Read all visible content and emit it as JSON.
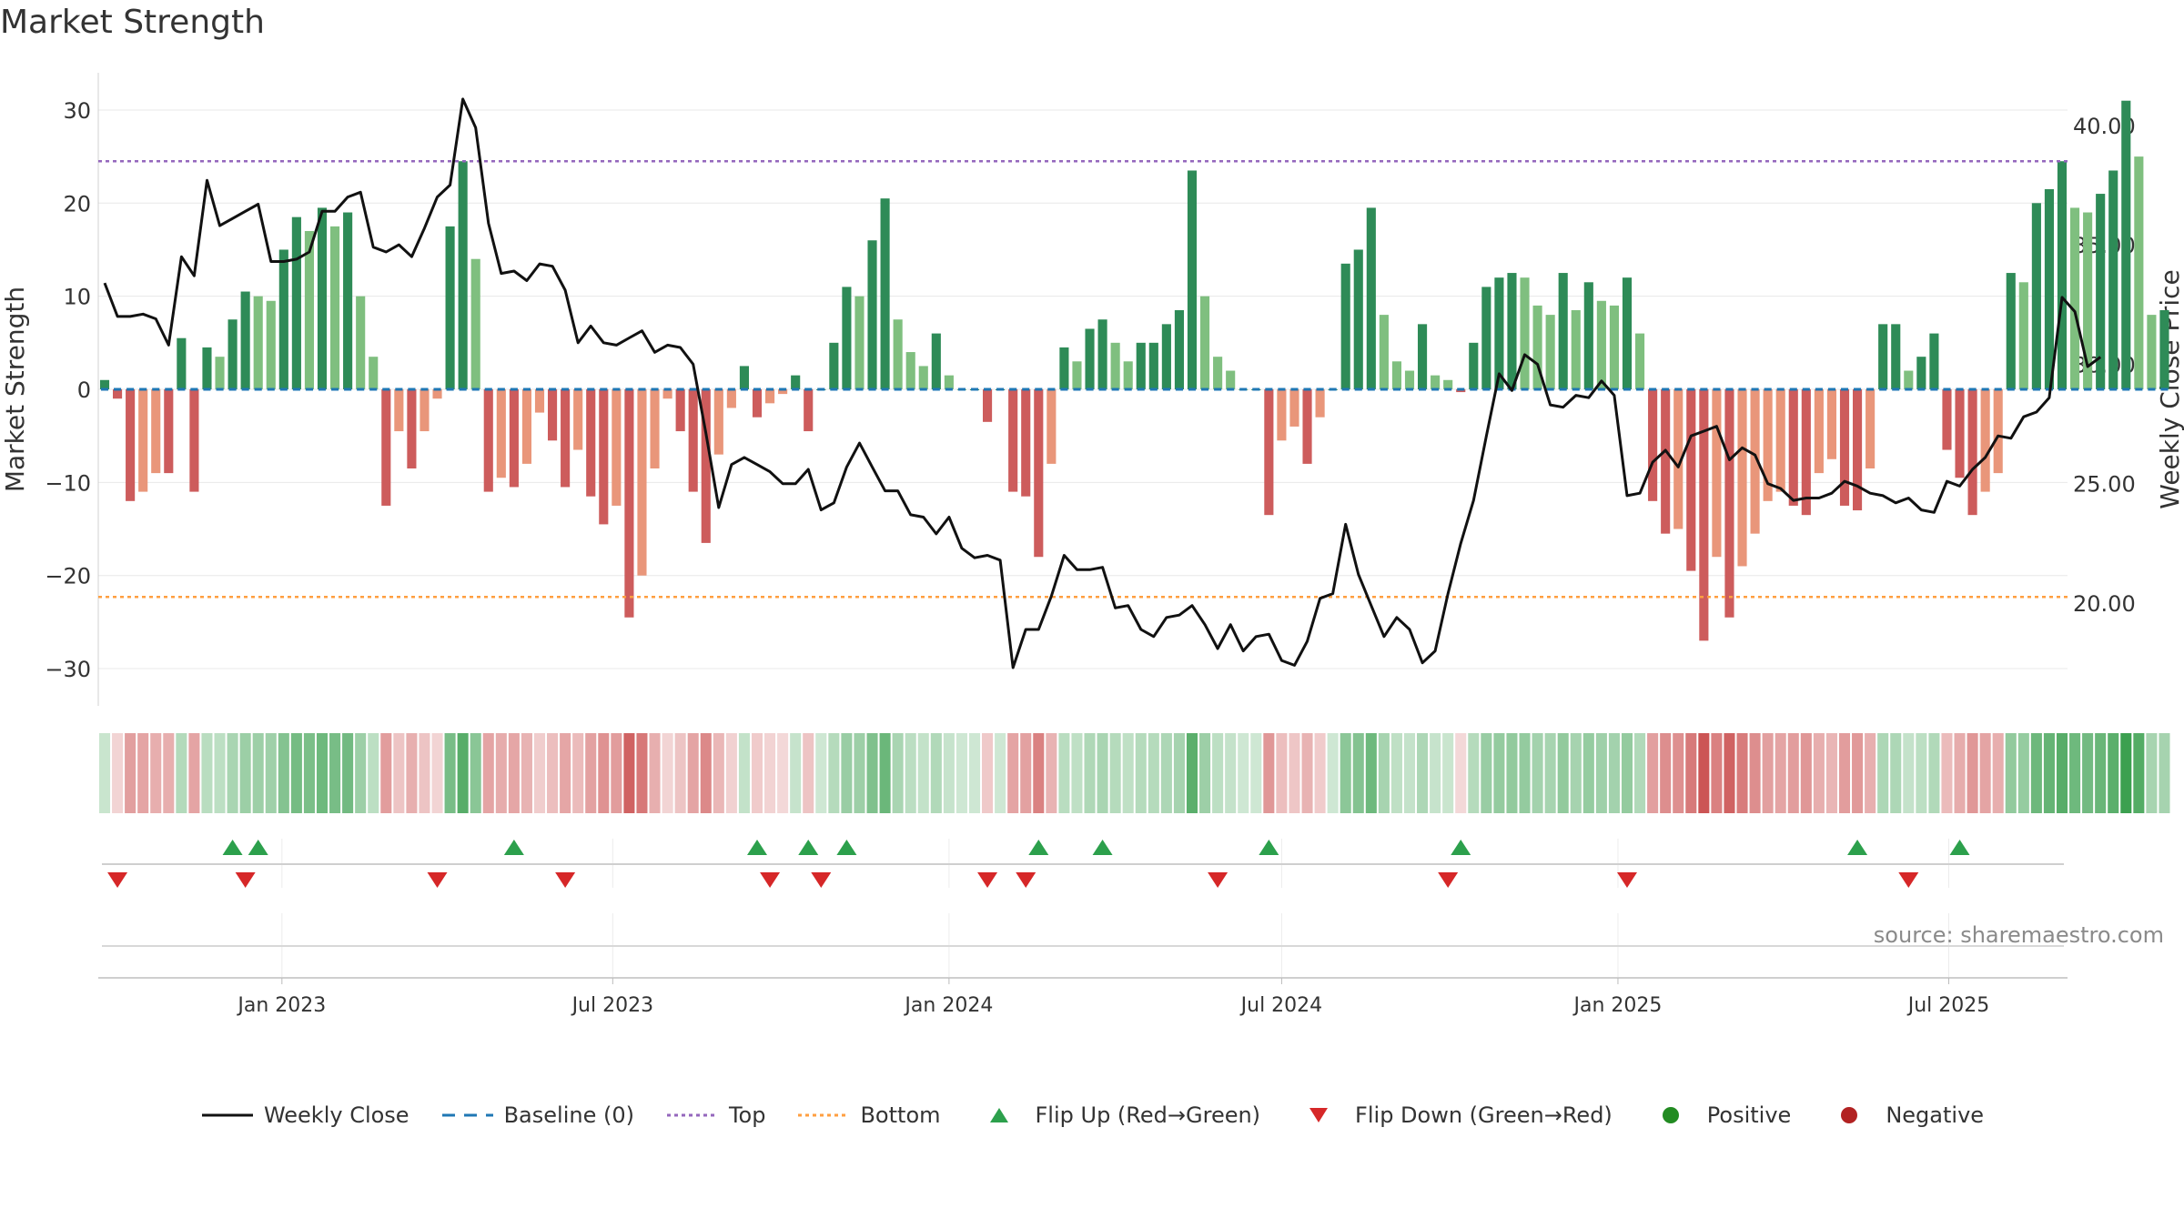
{
  "title": "Market Strength",
  "source_text": "source: sharemaestro.com",
  "colors": {
    "strong_green": "#2e8b57",
    "light_green": "#7fbf7f",
    "strong_red": "#cd5c5c",
    "light_red": "#e9967a",
    "close_line": "#111111",
    "baseline": "#1f77b4",
    "top_line": "#9467bd",
    "bottom_line": "#ff9f40",
    "flip_up": "#2ca04c",
    "flip_down": "#d62728",
    "positive": "#228b22",
    "negative": "#b22222"
  },
  "legend": [
    {
      "label": "Weekly Close",
      "icon": "line-solid",
      "color": "#111111"
    },
    {
      "label": "Baseline (0)",
      "icon": "line-dashed",
      "color": "#1f77b4"
    },
    {
      "label": "Top",
      "icon": "line-dotted",
      "color": "#9467bd"
    },
    {
      "label": "Bottom",
      "icon": "line-dotted",
      "color": "#ff9f40"
    },
    {
      "label": "Flip Up (Red→Green)",
      "icon": "triangle-up",
      "color": "#2ca04c"
    },
    {
      "label": "Flip Down (Green→Red)",
      "icon": "triangle-down",
      "color": "#d62728"
    },
    {
      "label": "Positive",
      "icon": "circle",
      "color": "#228b22"
    },
    {
      "label": "Negative",
      "icon": "circle",
      "color": "#b22222"
    }
  ],
  "chart_data": {
    "type": "bar",
    "title": "Market Strength",
    "ylabel": "Market Strength",
    "y2label": "Weekly Close Price",
    "ylim": [
      -34,
      34
    ],
    "yticks": [
      -30,
      -20,
      -10,
      0,
      10,
      20,
      30
    ],
    "ytick_labels": [
      "−30",
      "−20",
      "−10",
      "0",
      "10",
      "20",
      "30"
    ],
    "y2lim": [
      15.7,
      42.2
    ],
    "y2ticks": [
      20,
      25,
      30,
      35,
      40
    ],
    "y2tick_labels": [
      "20.00",
      "25.00",
      "30.00",
      "35.00",
      "40.00"
    ],
    "start_date": "2022-09-26",
    "week_count": 154,
    "xticks": [
      "2023-01-01",
      "2023-07-01",
      "2024-01-01",
      "2024-07-01",
      "2025-01-01",
      "2025-07-01"
    ],
    "xtick_labels": [
      "Jan 2023",
      "Jul 2023",
      "Jan 2024",
      "Jul 2024",
      "Jan 2025",
      "Jul 2025"
    ],
    "top_level": 24.5,
    "bottom_level": -22.3,
    "grid": true,
    "legend_position": "bottom",
    "strength": [
      1,
      -1,
      -12,
      -11,
      -9,
      -9,
      5.5,
      -11,
      4.5,
      3.5,
      7.5,
      10.5,
      10,
      9.5,
      15,
      18.5,
      17,
      19.5,
      17.5,
      19,
      10,
      3.5,
      -12.5,
      -4.5,
      -8.5,
      -4.5,
      -1,
      17.5,
      24.5,
      14,
      -11,
      -9.5,
      -10.5,
      -8,
      -2.5,
      -5.5,
      -10.5,
      -6.5,
      -11.5,
      -14.5,
      -12.5,
      -24.5,
      -20,
      -8.5,
      -1,
      -4.5,
      -11,
      -16.5,
      -7,
      -2,
      2.5,
      -3,
      -1.5,
      -0.5,
      1.5,
      -4.5,
      0,
      5,
      11,
      10,
      16,
      20.5,
      7.5,
      4,
      2.5,
      6,
      1.5,
      0,
      0,
      -3.5,
      0,
      -11,
      -11.5,
      -18,
      -8,
      4.5,
      3,
      6.5,
      7.5,
      5,
      3,
      5,
      5,
      7,
      8.5,
      23.5,
      10,
      3.5,
      2,
      0,
      0,
      -13.5,
      -5.5,
      -4,
      -8,
      -3,
      0,
      13.5,
      15,
      19.5,
      8,
      3,
      2,
      7,
      1.5,
      1,
      -0.3,
      5,
      11,
      12,
      12.5,
      12,
      9,
      8,
      12.5,
      8.5,
      11.5,
      9.5,
      9,
      12,
      6,
      -12,
      -15.5,
      -15,
      -19.5,
      -27,
      -18,
      -24.5,
      -19,
      -15.5,
      -12,
      -11,
      -12.5,
      -13.5,
      -9,
      -7.5,
      -12.5,
      -13,
      -8.5,
      7,
      7,
      2,
      3.5,
      6,
      -6.5,
      -9.5,
      -13.5,
      -11,
      -9,
      12.5,
      11.5,
      20,
      21.5,
      24.5,
      19.5,
      19,
      21,
      23.5,
      31,
      25,
      8,
      8.5
    ],
    "weekly_close": [
      33.4,
      32,
      32,
      32.1,
      31.9,
      30.8,
      34.5,
      33.7,
      37.7,
      35.8,
      36.1,
      36.4,
      36.7,
      34.3,
      34.3,
      34.4,
      34.7,
      36.4,
      36.4,
      37,
      37.2,
      34.9,
      34.7,
      35,
      34.5,
      35.7,
      37,
      37.5,
      41.1,
      39.9,
      35.9,
      33.8,
      33.9,
      33.5,
      34.2,
      34.1,
      33.1,
      30.9,
      31.6,
      30.9,
      30.8,
      31.1,
      31.4,
      30.5,
      30.8,
      30.7,
      30,
      27.1,
      24,
      25.8,
      26.1,
      25.8,
      25.5,
      25,
      25,
      25.6,
      23.9,
      24.2,
      25.7,
      26.7,
      25.7,
      24.7,
      24.7,
      23.7,
      23.6,
      22.9,
      23.6,
      22.3,
      21.9,
      22,
      21.8,
      17.3,
      18.9,
      18.9,
      20.3,
      22,
      21.4,
      21.4,
      21.5,
      19.8,
      19.9,
      18.9,
      18.6,
      19.4,
      19.5,
      19.9,
      19.1,
      18.1,
      19.1,
      18,
      18.6,
      18.7,
      17.6,
      17.4,
      18.4,
      20.2,
      20.4,
      23.3,
      21.2,
      19.9,
      18.6,
      19.4,
      18.9,
      17.5,
      18,
      20.4,
      22.5,
      24.3,
      27,
      29.6,
      28.9,
      30.4,
      30,
      28.3,
      28.2,
      28.7,
      28.6,
      29.3,
      28.7,
      24.5,
      24.6,
      25.9,
      26.4,
      25.7,
      27,
      27.2,
      27.4,
      26,
      26.5,
      26.2,
      25,
      24.8,
      24.3,
      24.4,
      24.4,
      24.6,
      25.1,
      24.9,
      24.6,
      24.5,
      24.2,
      24.4,
      23.9,
      23.8,
      25.1,
      24.9,
      25.6,
      26.1,
      27,
      26.9,
      27.8,
      28,
      28.6,
      32.8,
      32.2,
      29.9,
      30.3
    ],
    "flip_up": [
      "2022-12-05",
      "2022-12-19",
      "2023-05-08",
      "2023-09-18",
      "2023-10-16",
      "2023-11-06",
      "2024-02-19",
      "2024-03-25",
      "2024-06-24",
      "2024-10-07",
      "2025-05-12",
      "2025-07-07"
    ],
    "flip_down": [
      "2022-10-03",
      "2022-12-12",
      "2023-03-27",
      "2023-06-05",
      "2023-09-25",
      "2023-10-23",
      "2024-01-22",
      "2024-02-12",
      "2024-05-27",
      "2024-09-30",
      "2025-01-06",
      "2025-06-09"
    ]
  }
}
